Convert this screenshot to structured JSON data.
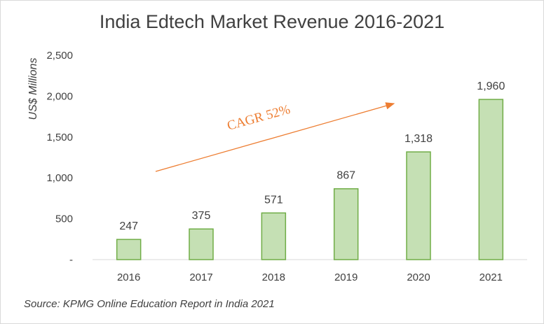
{
  "chart_data": {
    "type": "bar",
    "title": "India Edtech Market Revenue 2016-2021",
    "categories": [
      "2016",
      "2017",
      "2018",
      "2019",
      "2020",
      "2021"
    ],
    "values": [
      247,
      375,
      571,
      867,
      1318,
      1960
    ],
    "data_labels": [
      "247",
      "375",
      "571",
      "867",
      "1,318",
      "1,960"
    ],
    "ylabel": "US$ Millions",
    "xlabel": "",
    "ylim": [
      0,
      2500
    ],
    "yticks": [
      0,
      500,
      1000,
      1500,
      2000,
      2500
    ],
    "ytick_labels": [
      "-",
      "500",
      "1,000",
      "1,500",
      "2,000",
      "2,500"
    ],
    "grid": false,
    "bar_fill": "#c5e0b4",
    "bar_stroke": "#70ad47",
    "annotation": {
      "text": "CAGR 52%",
      "color": "#ed7d31"
    },
    "source": "Source: KPMG Online Education Report in India 2021"
  }
}
